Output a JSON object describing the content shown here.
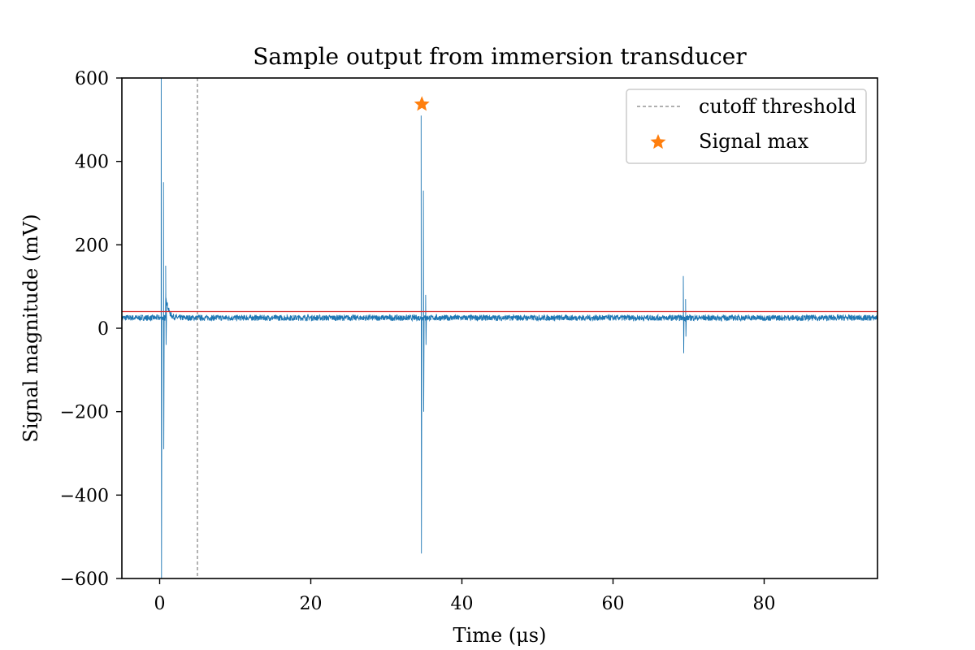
{
  "chart_data": {
    "type": "line",
    "title": "Sample output from immersion transducer",
    "xlabel": "Time (μs)",
    "ylabel": "Signal magnitude (mV)",
    "xlim": [
      -5,
      95
    ],
    "ylim": [
      -600,
      600
    ],
    "xticks": [
      0,
      20,
      40,
      60,
      80
    ],
    "xtick_labels": [
      "0",
      "20",
      "40",
      "60",
      "80"
    ],
    "yticks": [
      -600,
      -400,
      -200,
      0,
      200,
      400,
      600
    ],
    "ytick_labels": [
      "−600",
      "−400",
      "−200",
      "0",
      "200",
      "400",
      "600"
    ],
    "grid": false,
    "legend_position": "top-right",
    "baseline_level": 25,
    "series": [
      {
        "color": "#1f77b4",
        "baseline": 25,
        "noise_amplitude": 7,
        "spikes": [
          {
            "x": 0.2,
            "min": -600,
            "max": 600
          },
          {
            "x": 0.5,
            "min": -290,
            "max": 350
          },
          {
            "x": 0.8,
            "min": -40,
            "max": 150
          },
          {
            "x": 34.6,
            "min": -540,
            "max": 510
          },
          {
            "x": 34.9,
            "min": -200,
            "max": 330
          },
          {
            "x": 35.2,
            "min": -40,
            "max": 80
          },
          {
            "x": 69.3,
            "min": -60,
            "max": 125
          },
          {
            "x": 69.6,
            "min": -20,
            "max": 70
          }
        ]
      },
      {
        "name": "cutoff threshold",
        "kind": "vline",
        "x": 5,
        "color": "#808080",
        "dashed": true
      },
      {
        "name": "Signal max",
        "kind": "point",
        "x": 34.7,
        "y": 537,
        "marker": "star",
        "color": "#ff7f0e"
      },
      {
        "kind": "hline",
        "y": 40,
        "color": "#d62728"
      }
    ]
  }
}
